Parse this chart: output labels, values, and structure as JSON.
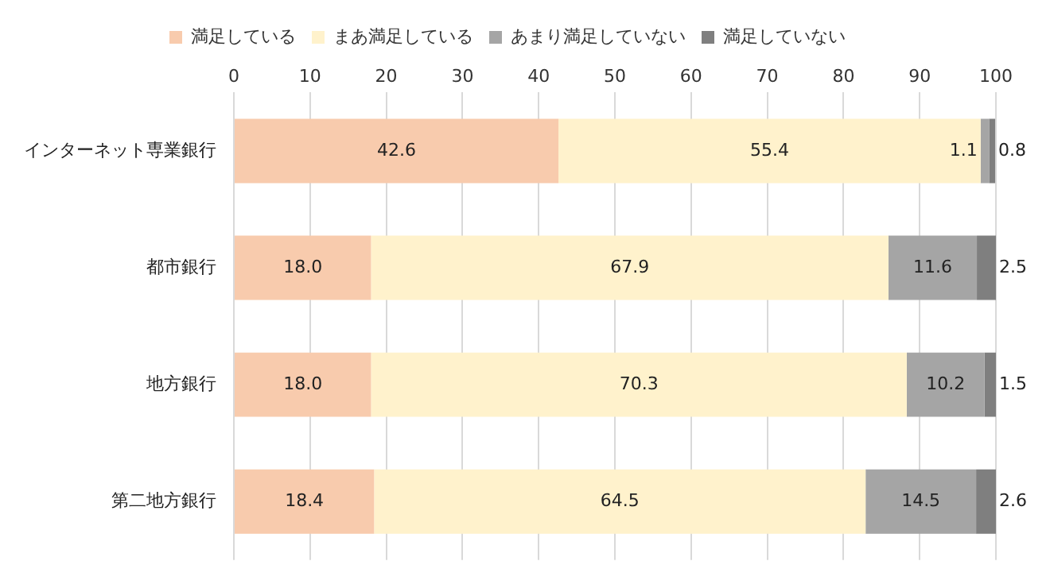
{
  "chart_data": {
    "type": "bar",
    "orientation": "horizontal",
    "stacked": true,
    "categories": [
      "インターネット専業銀行",
      "都市銀行",
      "地方銀行",
      "第二地方銀行"
    ],
    "series": [
      {
        "name": "満足している",
        "color": "#f8cbad",
        "values": [
          42.6,
          18,
          18,
          18.4
        ],
        "value_labels": [
          "42.6",
          "18.0",
          "18.0",
          "18.4"
        ]
      },
      {
        "name": "まあ満足している",
        "color": "#fff2cc",
        "values": [
          55.4,
          67.9,
          70.3,
          64.5
        ],
        "value_labels": [
          "55.4",
          "67.9",
          "70.3",
          "64.5"
        ]
      },
      {
        "name": "あまり満足していない",
        "color": "#a5a5a5",
        "values": [
          1.1,
          11.6,
          10.2,
          14.5
        ],
        "value_labels": [
          "1.1",
          "11.6",
          "10.2",
          "14.5"
        ]
      },
      {
        "name": "満足していない",
        "color": "#7f7f7f",
        "values": [
          0.8,
          2.5,
          1.5,
          2.6
        ],
        "value_labels": [
          "0.8",
          "2.5",
          "1.5",
          "2.6"
        ]
      }
    ],
    "xlim": [
      0,
      100
    ],
    "xticks": [
      0,
      10,
      20,
      30,
      40,
      50,
      60,
      70,
      80,
      90,
      100
    ],
    "grid": "x",
    "legend": "top"
  }
}
